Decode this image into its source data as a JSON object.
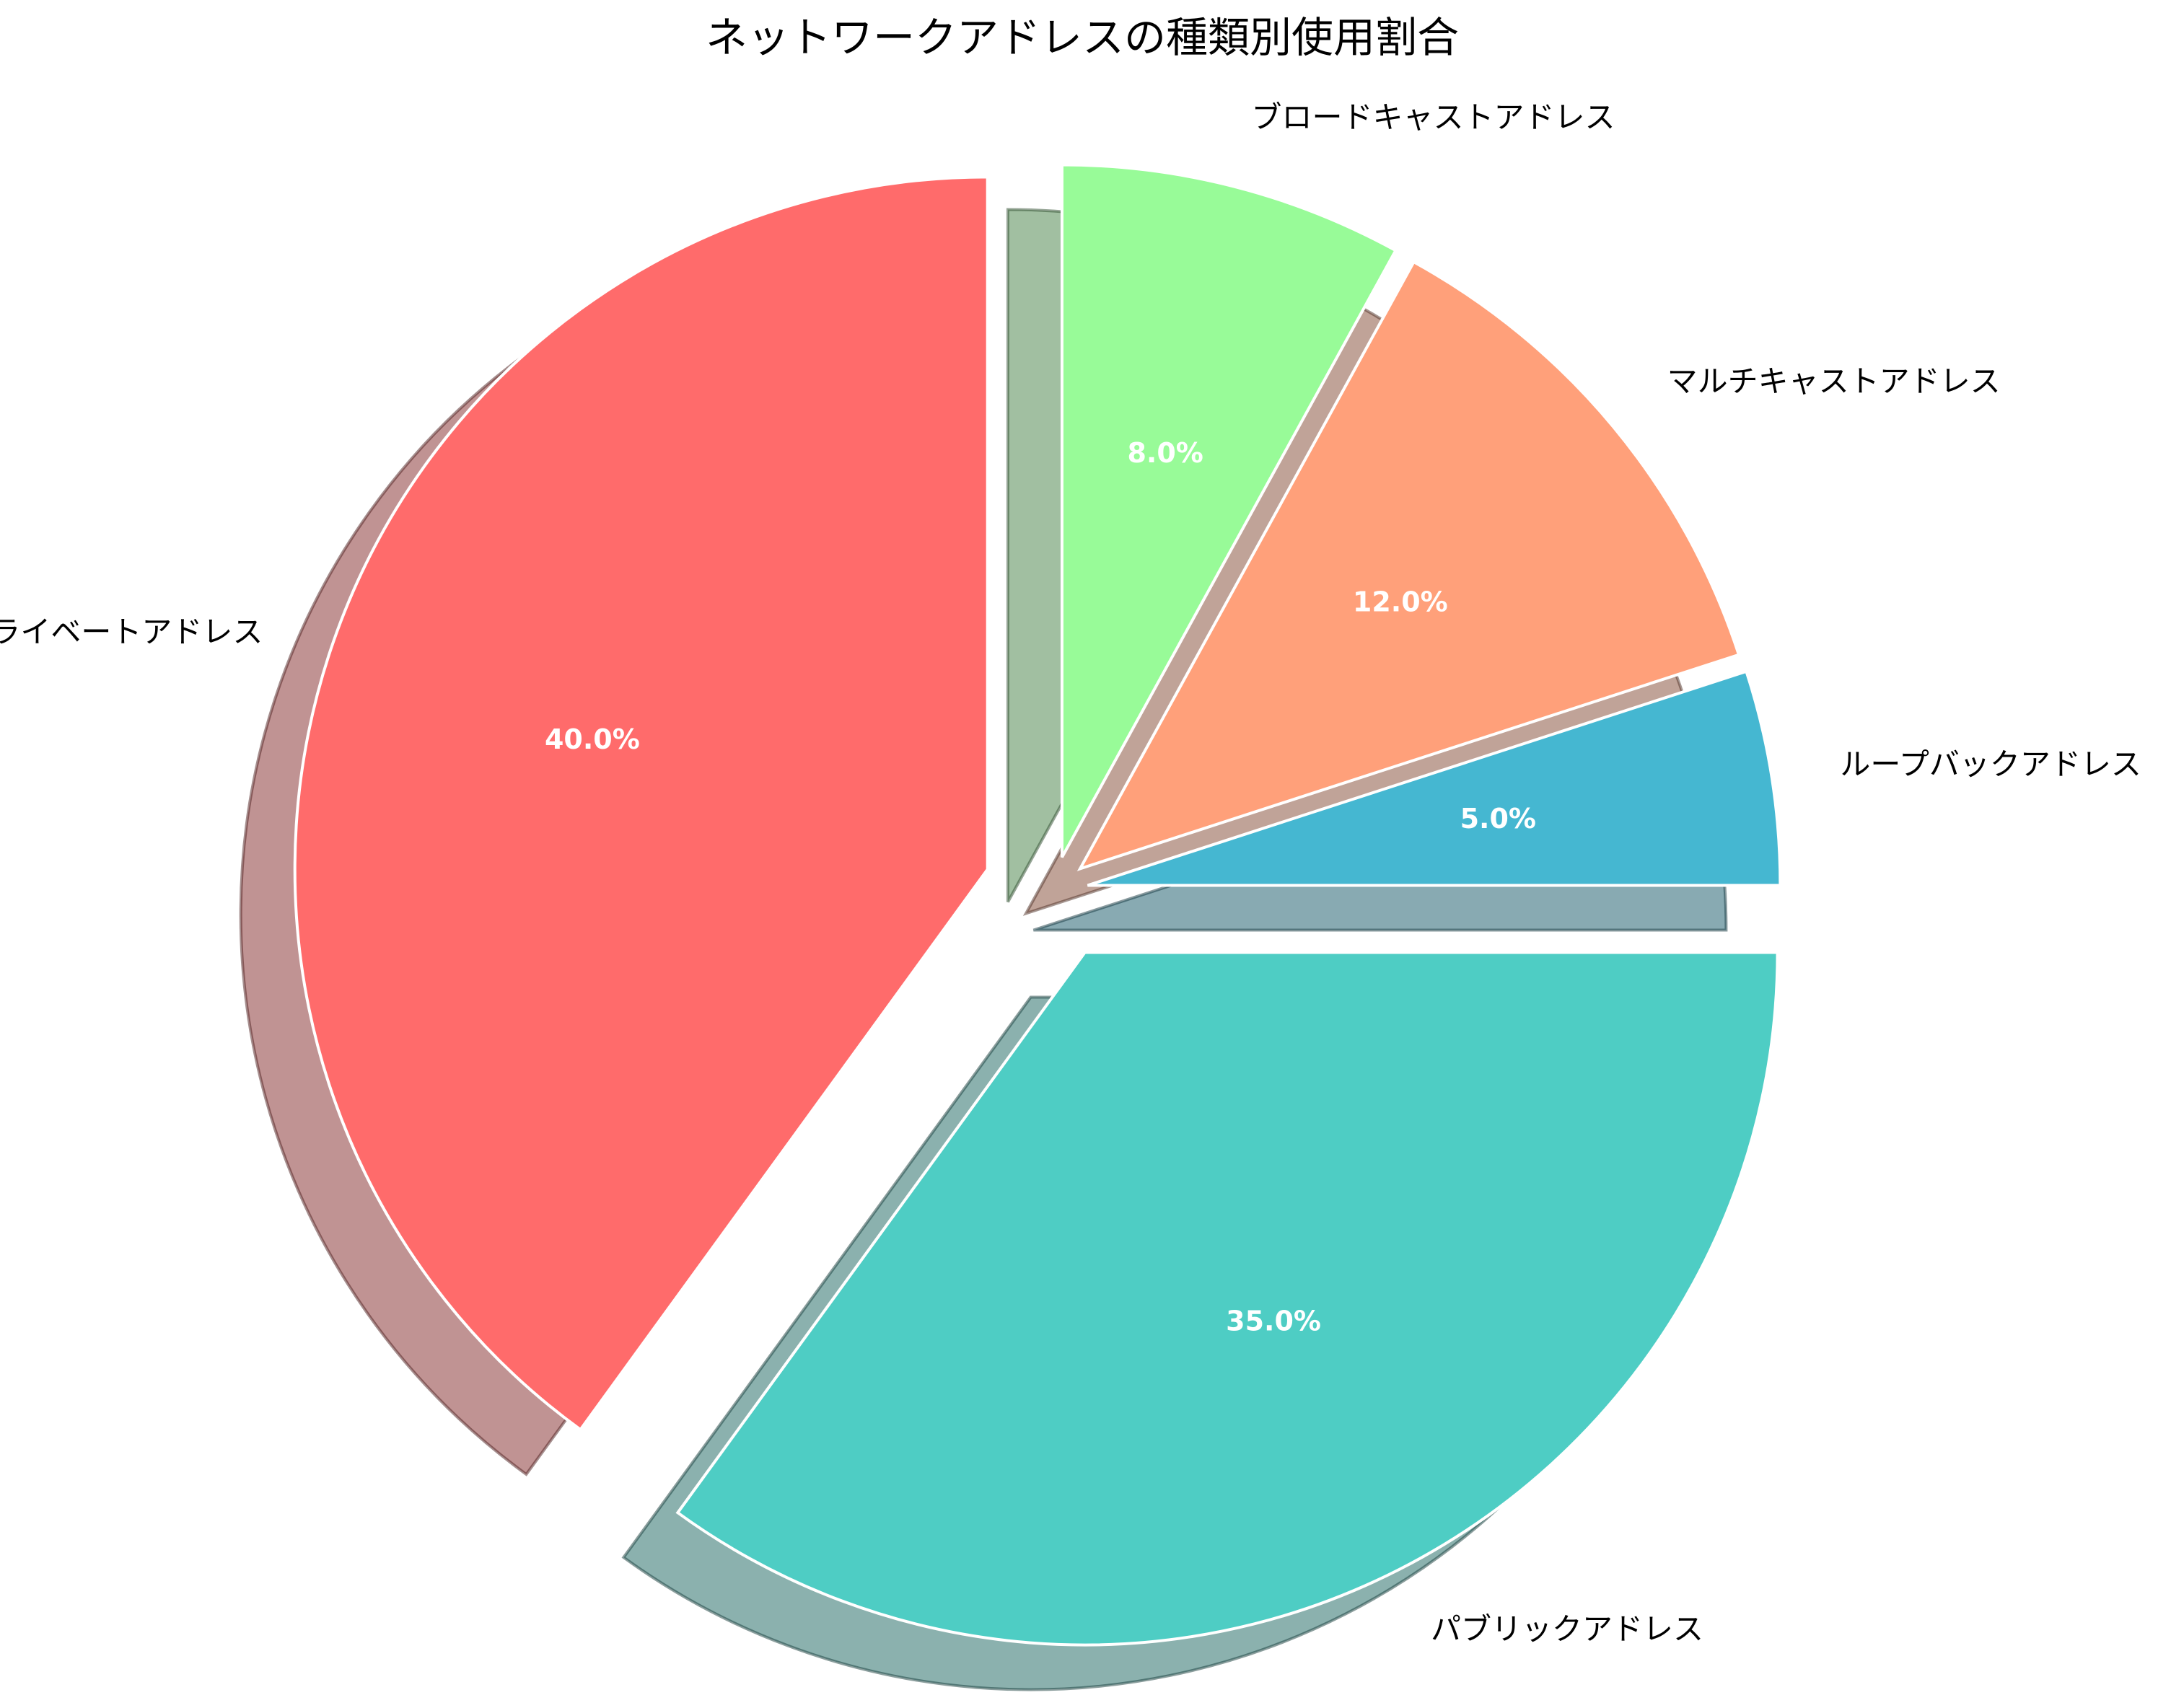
{
  "chart_data": {
    "type": "pie",
    "title": "ネットワークアドレスの種類別使用割合",
    "start_angle_deg": 90,
    "direction": "clockwise",
    "shadow": true,
    "slices": [
      {
        "label": "ブロードキャストアドレス",
        "value": 8.0,
        "pct_text": "8.0%",
        "color": "#98FB98",
        "explode": 0.05
      },
      {
        "label": "マルチキャストアドレス",
        "value": 12.0,
        "pct_text": "12.0%",
        "color": "#FFA07A",
        "explode": 0.05
      },
      {
        "label": "ループバックアドレス",
        "value": 5.0,
        "pct_text": "5.0%",
        "color": "#45B7D1",
        "explode": 0.05
      },
      {
        "label": "パブリックアドレス",
        "value": 35.0,
        "pct_text": "35.0%",
        "color": "#4ECDC4",
        "explode": 0.1
      },
      {
        "label": "プライベートアドレス",
        "value": 40.0,
        "pct_text": "40.0%",
        "color": "#FF6B6B",
        "explode": 0.1
      }
    ]
  }
}
